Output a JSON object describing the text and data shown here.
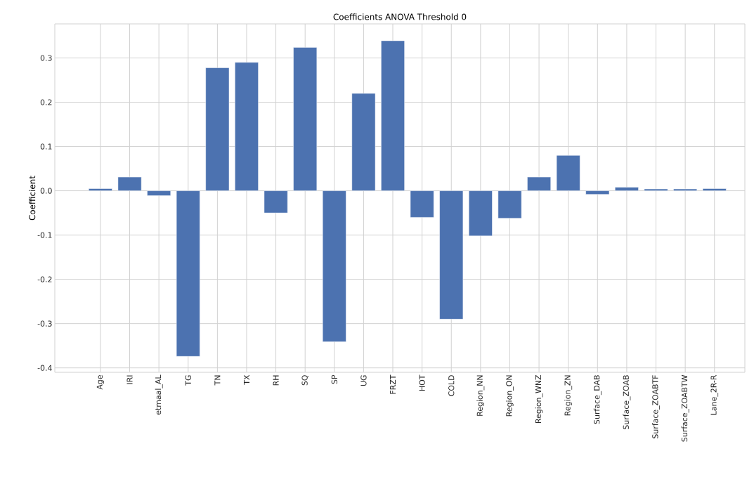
{
  "chart_data": {
    "type": "bar",
    "title": "Coefficients ANOVA Threshold 0",
    "ylabel": "Coefficient",
    "categories": [
      "Age",
      "IRI",
      "etmaal_AL",
      "TG",
      "TN",
      "TX",
      "RH",
      "SQ",
      "SP",
      "UG",
      "FRZT",
      "HOT",
      "COLD",
      "Region_NN",
      "Region_ON",
      "Region_WNZ",
      "Region_ZN",
      "Surface_DAB",
      "Surface_ZOAB",
      "Surface_ZOABTF",
      "Surface_ZOABTW",
      "Lane_2R-R"
    ],
    "values": [
      0.005,
      0.031,
      -0.011,
      -0.374,
      0.278,
      0.29,
      -0.05,
      0.324,
      -0.341,
      0.22,
      0.339,
      -0.06,
      -0.29,
      -0.102,
      -0.062,
      0.031,
      0.08,
      -0.008,
      0.008,
      0.004,
      0.004,
      0.005
    ],
    "color": "#4c72b0",
    "ylim": [
      -0.41,
      0.377
    ],
    "yticks": [
      -0.4,
      -0.3,
      -0.2,
      -0.1,
      {
        "value": 0,
        "label": "0.0"
      },
      0.1,
      0.2,
      0.3
    ],
    "grid": true
  }
}
